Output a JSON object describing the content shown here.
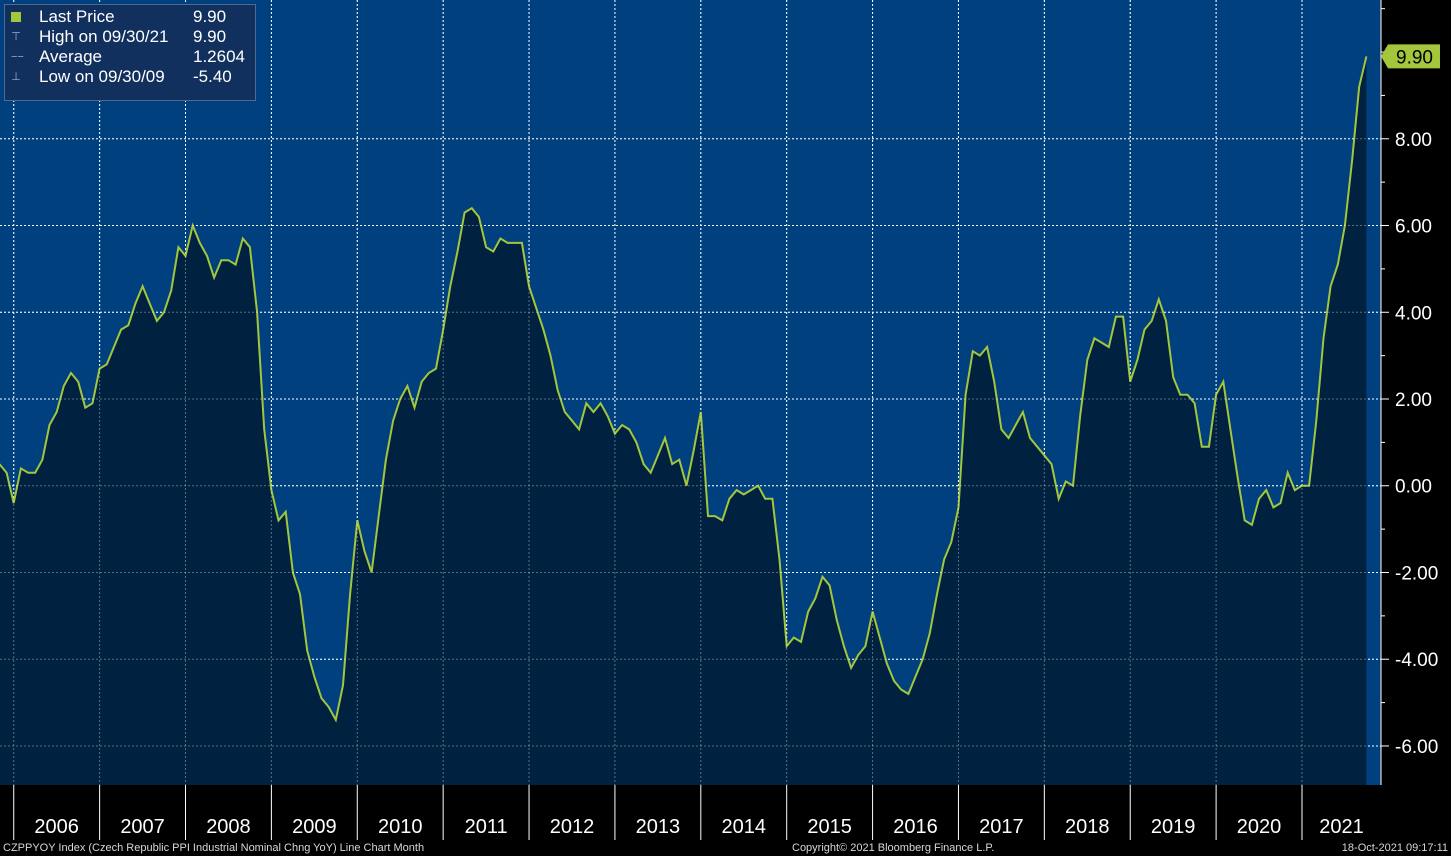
{
  "legend": {
    "last_price_label": "Last Price",
    "last_price_value": "9.90",
    "high_label": "High on 09/30/21",
    "high_value": "9.90",
    "average_label": "Average",
    "average_value": "1.2604",
    "low_label": "Low on 09/30/09",
    "low_value": "-5.40"
  },
  "footer": {
    "source": "CZPPYOY Index (Czech Republic PPI Industrial Nominal Chng YoY) Line Chart  Month",
    "copyright": "Copyright© 2021 Bloomberg Finance L.P.",
    "timestamp": "18-Oct-2021 09:17:11"
  },
  "colors": {
    "background": "#00407f",
    "area": "#00213f",
    "line": "#a3c63c",
    "grid": "#ffffff"
  },
  "chart_data": {
    "type": "area",
    "last_value_label": "9.90",
    "yticks": [
      8,
      6,
      4,
      2,
      0,
      -2,
      -4,
      -6
    ],
    "ytick_labels": [
      "8.00",
      "6.00",
      "4.00",
      "2.00",
      "0.00",
      "-2.00",
      "-4.00",
      "-6.00"
    ],
    "ylim": [
      -6.9,
      11.2
    ],
    "xlim": [
      2005.84,
      2021.92
    ],
    "year_labels": [
      "2006",
      "2007",
      "2008",
      "2009",
      "2010",
      "2011",
      "2012",
      "2013",
      "2014",
      "2015",
      "2016",
      "2017",
      "2018",
      "2019",
      "2020",
      "2021"
    ],
    "grid": true,
    "start": "2005-11",
    "frequency": "Month",
    "values": [
      0.5,
      0.3,
      -0.4,
      0.4,
      0.3,
      0.3,
      0.6,
      1.4,
      1.7,
      2.3,
      2.6,
      2.4,
      1.8,
      1.9,
      2.7,
      2.8,
      3.2,
      3.6,
      3.7,
      4.2,
      4.6,
      4.2,
      3.8,
      4.0,
      4.5,
      5.5,
      5.3,
      6.0,
      5.6,
      5.3,
      4.8,
      5.2,
      5.2,
      5.1,
      5.7,
      5.5,
      4.0,
      1.3,
      -0.1,
      -0.8,
      -0.6,
      -2.0,
      -2.5,
      -3.8,
      -4.4,
      -4.9,
      -5.1,
      -5.4,
      -4.6,
      -2.5,
      -0.8,
      -1.5,
      -2.0,
      -0.7,
      0.6,
      1.5,
      2.0,
      2.3,
      1.8,
      2.4,
      2.6,
      2.7,
      3.6,
      4.6,
      5.4,
      6.3,
      6.4,
      6.2,
      5.5,
      5.4,
      5.7,
      5.6,
      5.6,
      5.6,
      4.6,
      4.1,
      3.6,
      3.0,
      2.2,
      1.7,
      1.5,
      1.3,
      1.9,
      1.7,
      1.9,
      1.6,
      1.2,
      1.4,
      1.3,
      1.0,
      0.5,
      0.3,
      0.7,
      1.1,
      0.5,
      0.6,
      0.0,
      0.8,
      1.7,
      -0.7,
      -0.7,
      -0.8,
      -0.3,
      -0.1,
      -0.2,
      -0.1,
      0.0,
      -0.3,
      -0.3,
      -1.7,
      -3.7,
      -3.5,
      -3.6,
      -2.9,
      -2.6,
      -2.1,
      -2.3,
      -3.1,
      -3.7,
      -4.2,
      -3.9,
      -3.7,
      -2.9,
      -3.5,
      -4.1,
      -4.5,
      -4.7,
      -4.8,
      -4.4,
      -4.0,
      -3.4,
      -2.5,
      -1.7,
      -1.3,
      -0.5,
      2.1,
      3.1,
      3.0,
      3.2,
      2.4,
      1.3,
      1.1,
      1.4,
      1.7,
      1.1,
      0.9,
      0.7,
      0.5,
      -0.3,
      0.1,
      0.0,
      1.6,
      2.9,
      3.4,
      3.3,
      3.2,
      3.9,
      3.9,
      2.4,
      2.9,
      3.6,
      3.8,
      4.3,
      3.8,
      2.5,
      2.1,
      2.1,
      1.9,
      0.9,
      0.9,
      2.1,
      2.4,
      1.3,
      0.2,
      -0.8,
      -0.9,
      -0.3,
      -0.1,
      -0.5,
      -0.4,
      0.3,
      -0.1,
      0.0,
      0.0,
      1.5,
      3.4,
      4.6,
      5.1,
      6.0,
      7.5,
      9.2,
      9.9
    ]
  }
}
